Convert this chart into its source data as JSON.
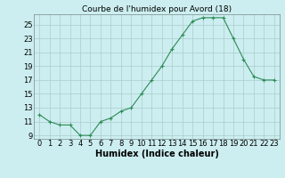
{
  "x": [
    0,
    1,
    2,
    3,
    4,
    5,
    6,
    7,
    8,
    9,
    10,
    11,
    12,
    13,
    14,
    15,
    16,
    17,
    18,
    19,
    20,
    21,
    22,
    23
  ],
  "y": [
    12,
    11,
    10.5,
    10.5,
    9,
    9,
    11,
    11.5,
    12.5,
    13,
    15,
    17,
    19,
    21.5,
    23.5,
    25.5,
    26,
    26,
    26,
    23,
    20,
    17.5,
    17,
    17
  ],
  "title": "Courbe de l'humidex pour Avord (18)",
  "xlabel": "Humidex (Indice chaleur)",
  "ylabel": "",
  "line_color": "#2e8b57",
  "marker": "+",
  "bg_color": "#cceef0",
  "grid_color": "#aacccc",
  "xlim": [
    -0.5,
    23.5
  ],
  "ylim": [
    8.5,
    26.5
  ],
  "yticks": [
    9,
    11,
    13,
    15,
    17,
    19,
    21,
    23,
    25
  ],
  "xticks": [
    0,
    1,
    2,
    3,
    4,
    5,
    6,
    7,
    8,
    9,
    10,
    11,
    12,
    13,
    14,
    15,
    16,
    17,
    18,
    19,
    20,
    21,
    22,
    23
  ],
  "title_fontsize": 6.5,
  "xlabel_fontsize": 7,
  "tick_fontsize": 6
}
